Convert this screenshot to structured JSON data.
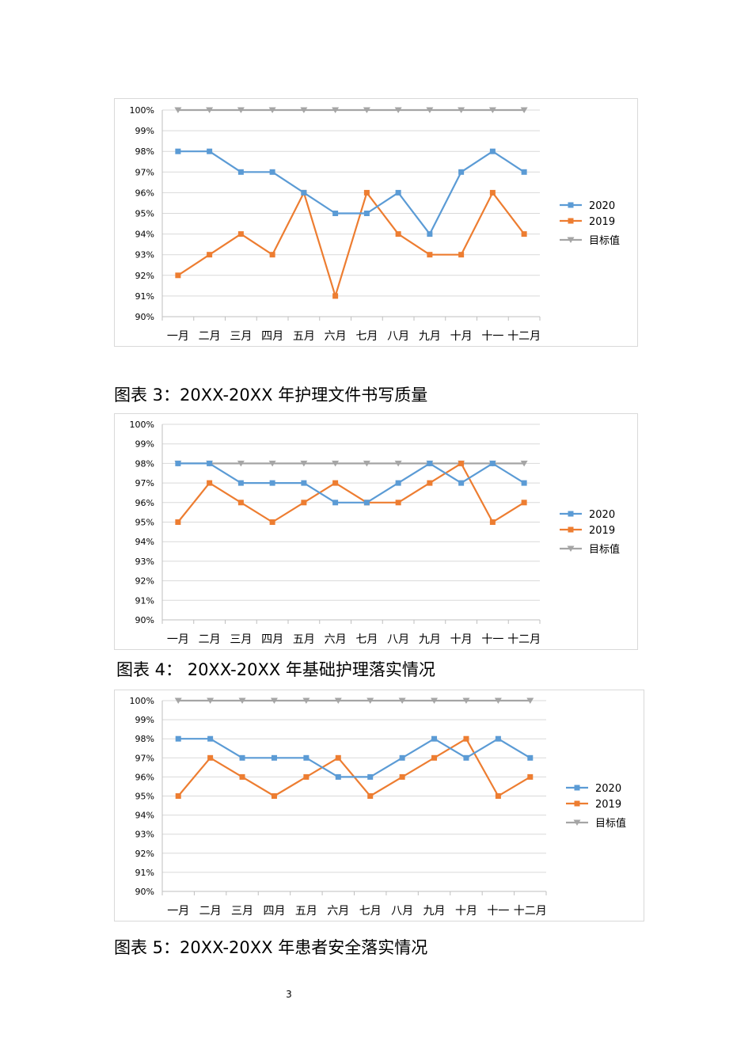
{
  "colors": {
    "s2020": "#5b9bd5",
    "s2019": "#ed7d31",
    "target": "#a5a5a5",
    "grid": "#d9d9d9",
    "axis": "#bfbfbf"
  },
  "chart_data": [
    {
      "type": "line",
      "categories": [
        "一月",
        "二月",
        "三月",
        "四月",
        "五月",
        "六月",
        "七月",
        "八月",
        "九月",
        "十月",
        "十一",
        "十二月"
      ],
      "ylim": [
        90,
        100
      ],
      "ytick_labels": [
        "90%",
        "91%",
        "92%",
        "93%",
        "94%",
        "95%",
        "96%",
        "97%",
        "98%",
        "99%",
        "100%"
      ],
      "grid": true,
      "legend": "right",
      "series": [
        {
          "name": "2020",
          "marker": "square",
          "values": [
            98,
            98,
            97,
            97,
            96,
            95,
            95,
            96,
            94,
            97,
            98,
            97
          ]
        },
        {
          "name": "2019",
          "marker": "square",
          "values": [
            92,
            93,
            94,
            93,
            96,
            91,
            96,
            94,
            93,
            93,
            96,
            94
          ]
        },
        {
          "name": "目标值",
          "marker": "triangle-down",
          "values": [
            100,
            100,
            100,
            100,
            100,
            100,
            100,
            100,
            100,
            100,
            100,
            100
          ]
        }
      ]
    },
    {
      "type": "line",
      "categories": [
        "一月",
        "二月",
        "三月",
        "四月",
        "五月",
        "六月",
        "七月",
        "八月",
        "九月",
        "十月",
        "十一",
        "十二月"
      ],
      "ylim": [
        90,
        100
      ],
      "ytick_labels": [
        "90%",
        "91%",
        "92%",
        "93%",
        "94%",
        "95%",
        "96%",
        "97%",
        "98%",
        "99%",
        "100%"
      ],
      "grid": true,
      "legend": "right",
      "series": [
        {
          "name": "2020",
          "marker": "square",
          "values": [
            98,
            98,
            97,
            97,
            97,
            96,
            96,
            97,
            98,
            97,
            98,
            97
          ]
        },
        {
          "name": "2019",
          "marker": "square",
          "values": [
            95,
            97,
            96,
            95,
            96,
            97,
            96,
            96,
            97,
            98,
            95,
            96
          ]
        },
        {
          "name": "目标值",
          "marker": "triangle-down",
          "values": [
            98,
            98,
            98,
            98,
            98,
            98,
            98,
            98,
            98,
            98,
            98,
            98
          ]
        }
      ]
    },
    {
      "type": "line",
      "categories": [
        "一月",
        "二月",
        "三月",
        "四月",
        "五月",
        "六月",
        "七月",
        "八月",
        "九月",
        "十月",
        "十一",
        "十二月"
      ],
      "ylim": [
        90,
        100
      ],
      "ytick_labels": [
        "90%",
        "91%",
        "92%",
        "93%",
        "94%",
        "95%",
        "96%",
        "97%",
        "98%",
        "99%",
        "100%"
      ],
      "grid": true,
      "legend": "right",
      "series": [
        {
          "name": "2020",
          "marker": "square",
          "values": [
            98,
            98,
            97,
            97,
            97,
            96,
            96,
            97,
            98,
            97,
            98,
            97
          ]
        },
        {
          "name": "2019",
          "marker": "square",
          "values": [
            95,
            97,
            96,
            95,
            96,
            97,
            95,
            96,
            97,
            98,
            95,
            96
          ]
        },
        {
          "name": "目标值",
          "marker": "triangle-down",
          "values": [
            100,
            100,
            100,
            100,
            100,
            100,
            100,
            100,
            100,
            100,
            100,
            100
          ]
        }
      ]
    }
  ],
  "captions": {
    "c3": "图表 3：20XX-20XX 年护理文件书写质量",
    "c4": "图表 4： 20XX-20XX 年基础护理落实情况",
    "c5": "图表 5：20XX-20XX 年患者安全落实情况"
  },
  "page_number": "3"
}
